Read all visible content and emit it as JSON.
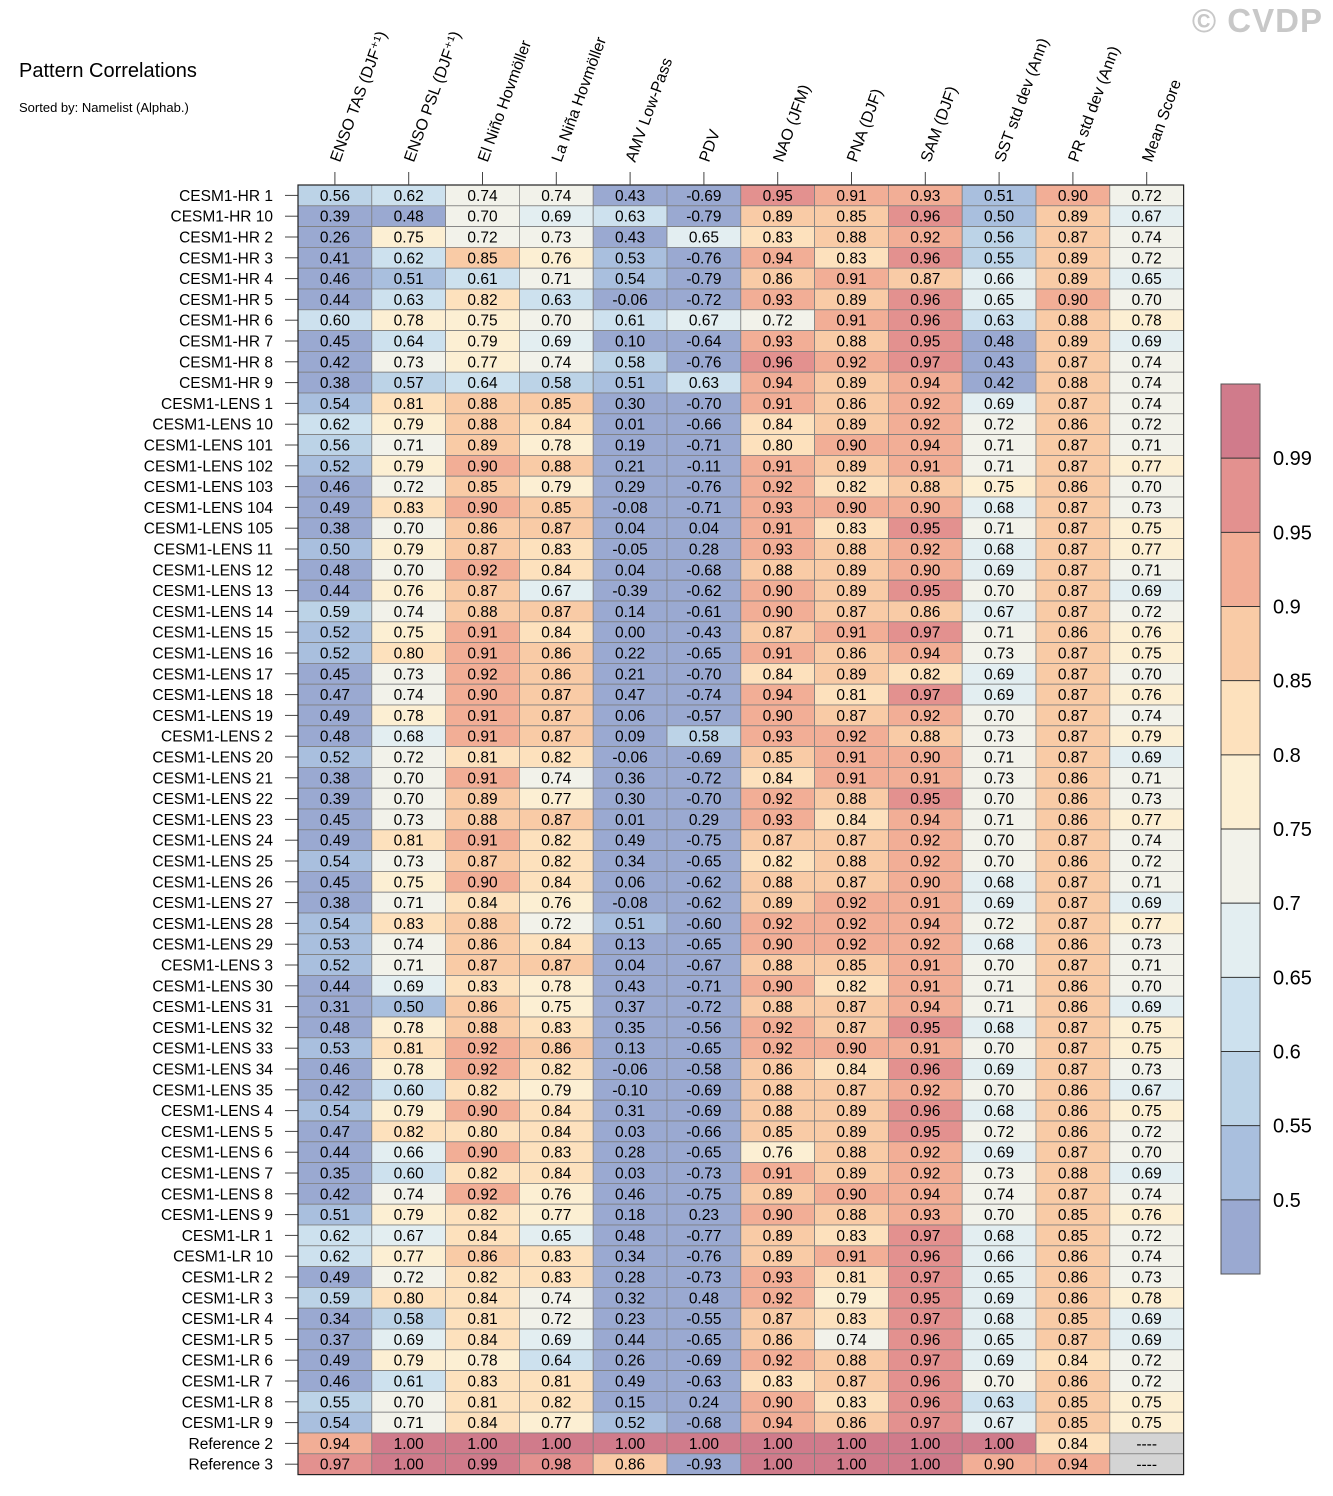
{
  "watermark": "© CVDP",
  "chart_data": {
    "type": "heatmap",
    "title": "Pattern Correlations",
    "subtitle": "Sorted by: Namelist (Alphab.)",
    "columns": [
      "ENSO TAS (DJF⁺¹)",
      "ENSO PSL (DJF⁺¹)",
      "El Niño Hovmöller",
      "La Niña Hovmöller",
      "AMV Low-Pass",
      "PDV",
      "NAO (JFM)",
      "PNA (DJF)",
      "SAM (DJF)",
      "SST std dev (Ann)",
      "PR std dev (Ann)",
      "Mean Score"
    ],
    "rows": [
      {
        "name": "CESM1-HR 1",
        "values": [
          "0.56",
          "0.62",
          "0.74",
          "0.74",
          "0.43",
          "-0.69",
          "0.95",
          "0.91",
          "0.93",
          "0.51",
          "0.90",
          "0.72"
        ]
      },
      {
        "name": "CESM1-HR 10",
        "values": [
          "0.39",
          "0.48",
          "0.70",
          "0.69",
          "0.63",
          "-0.79",
          "0.89",
          "0.85",
          "0.96",
          "0.50",
          "0.89",
          "0.67"
        ]
      },
      {
        "name": "CESM1-HR 2",
        "values": [
          "0.26",
          "0.75",
          "0.72",
          "0.73",
          "0.43",
          "0.65",
          "0.83",
          "0.88",
          "0.92",
          "0.56",
          "0.87",
          "0.74"
        ]
      },
      {
        "name": "CESM1-HR 3",
        "values": [
          "0.41",
          "0.62",
          "0.85",
          "0.76",
          "0.53",
          "-0.76",
          "0.94",
          "0.83",
          "0.96",
          "0.55",
          "0.89",
          "0.72"
        ]
      },
      {
        "name": "CESM1-HR 4",
        "values": [
          "0.46",
          "0.51",
          "0.61",
          "0.71",
          "0.54",
          "-0.79",
          "0.86",
          "0.91",
          "0.87",
          "0.66",
          "0.89",
          "0.65"
        ]
      },
      {
        "name": "CESM1-HR 5",
        "values": [
          "0.44",
          "0.63",
          "0.82",
          "0.63",
          "-0.06",
          "-0.72",
          "0.93",
          "0.89",
          "0.96",
          "0.65",
          "0.90",
          "0.70"
        ]
      },
      {
        "name": "CESM1-HR 6",
        "values": [
          "0.60",
          "0.78",
          "0.75",
          "0.70",
          "0.61",
          "0.67",
          "0.72",
          "0.91",
          "0.96",
          "0.63",
          "0.88",
          "0.78"
        ]
      },
      {
        "name": "CESM1-HR 7",
        "values": [
          "0.45",
          "0.64",
          "0.79",
          "0.69",
          "0.10",
          "-0.64",
          "0.93",
          "0.88",
          "0.95",
          "0.48",
          "0.89",
          "0.69"
        ]
      },
      {
        "name": "CESM1-HR 8",
        "values": [
          "0.42",
          "0.73",
          "0.77",
          "0.74",
          "0.58",
          "-0.76",
          "0.96",
          "0.92",
          "0.97",
          "0.43",
          "0.87",
          "0.74"
        ]
      },
      {
        "name": "CESM1-HR 9",
        "values": [
          "0.38",
          "0.57",
          "0.64",
          "0.58",
          "0.51",
          "0.63",
          "0.94",
          "0.89",
          "0.94",
          "0.42",
          "0.88",
          "0.74"
        ]
      },
      {
        "name": "CESM1-LENS 1",
        "values": [
          "0.54",
          "0.81",
          "0.88",
          "0.85",
          "0.30",
          "-0.70",
          "0.91",
          "0.86",
          "0.92",
          "0.69",
          "0.87",
          "0.74"
        ]
      },
      {
        "name": "CESM1-LENS 10",
        "values": [
          "0.62",
          "0.79",
          "0.88",
          "0.84",
          "0.01",
          "-0.66",
          "0.84",
          "0.89",
          "0.92",
          "0.72",
          "0.86",
          "0.72"
        ]
      },
      {
        "name": "CESM1-LENS 101",
        "values": [
          "0.56",
          "0.71",
          "0.89",
          "0.78",
          "0.19",
          "-0.71",
          "0.80",
          "0.90",
          "0.94",
          "0.71",
          "0.87",
          "0.71"
        ]
      },
      {
        "name": "CESM1-LENS 102",
        "values": [
          "0.52",
          "0.79",
          "0.90",
          "0.88",
          "0.21",
          "-0.11",
          "0.91",
          "0.89",
          "0.91",
          "0.71",
          "0.87",
          "0.77"
        ]
      },
      {
        "name": "CESM1-LENS 103",
        "values": [
          "0.46",
          "0.72",
          "0.85",
          "0.79",
          "0.29",
          "-0.76",
          "0.92",
          "0.82",
          "0.88",
          "0.75",
          "0.86",
          "0.70"
        ]
      },
      {
        "name": "CESM1-LENS 104",
        "values": [
          "0.49",
          "0.83",
          "0.90",
          "0.85",
          "-0.08",
          "-0.71",
          "0.93",
          "0.90",
          "0.90",
          "0.68",
          "0.87",
          "0.73"
        ]
      },
      {
        "name": "CESM1-LENS 105",
        "values": [
          "0.38",
          "0.70",
          "0.86",
          "0.87",
          "0.04",
          "0.04",
          "0.91",
          "0.83",
          "0.95",
          "0.71",
          "0.87",
          "0.75"
        ]
      },
      {
        "name": "CESM1-LENS 11",
        "values": [
          "0.50",
          "0.79",
          "0.87",
          "0.83",
          "-0.05",
          "0.28",
          "0.93",
          "0.88",
          "0.92",
          "0.68",
          "0.87",
          "0.77"
        ]
      },
      {
        "name": "CESM1-LENS 12",
        "values": [
          "0.48",
          "0.70",
          "0.92",
          "0.84",
          "0.04",
          "-0.68",
          "0.88",
          "0.89",
          "0.90",
          "0.69",
          "0.87",
          "0.71"
        ]
      },
      {
        "name": "CESM1-LENS 13",
        "values": [
          "0.44",
          "0.76",
          "0.87",
          "0.67",
          "-0.39",
          "-0.62",
          "0.90",
          "0.89",
          "0.95",
          "0.70",
          "0.87",
          "0.69"
        ]
      },
      {
        "name": "CESM1-LENS 14",
        "values": [
          "0.59",
          "0.74",
          "0.88",
          "0.87",
          "0.14",
          "-0.61",
          "0.90",
          "0.87",
          "0.86",
          "0.67",
          "0.87",
          "0.72"
        ]
      },
      {
        "name": "CESM1-LENS 15",
        "values": [
          "0.52",
          "0.75",
          "0.91",
          "0.84",
          "0.00",
          "-0.43",
          "0.87",
          "0.91",
          "0.97",
          "0.71",
          "0.86",
          "0.76"
        ]
      },
      {
        "name": "CESM1-LENS 16",
        "values": [
          "0.52",
          "0.80",
          "0.91",
          "0.86",
          "0.22",
          "-0.65",
          "0.91",
          "0.86",
          "0.94",
          "0.73",
          "0.87",
          "0.75"
        ]
      },
      {
        "name": "CESM1-LENS 17",
        "values": [
          "0.45",
          "0.73",
          "0.92",
          "0.86",
          "0.21",
          "-0.70",
          "0.84",
          "0.89",
          "0.82",
          "0.69",
          "0.87",
          "0.70"
        ]
      },
      {
        "name": "CESM1-LENS 18",
        "values": [
          "0.47",
          "0.74",
          "0.90",
          "0.87",
          "0.47",
          "-0.74",
          "0.94",
          "0.81",
          "0.97",
          "0.69",
          "0.87",
          "0.76"
        ]
      },
      {
        "name": "CESM1-LENS 19",
        "values": [
          "0.49",
          "0.78",
          "0.91",
          "0.87",
          "0.06",
          "-0.57",
          "0.90",
          "0.87",
          "0.92",
          "0.70",
          "0.87",
          "0.74"
        ]
      },
      {
        "name": "CESM1-LENS 2",
        "values": [
          "0.48",
          "0.68",
          "0.91",
          "0.87",
          "0.09",
          "0.58",
          "0.93",
          "0.92",
          "0.88",
          "0.73",
          "0.87",
          "0.79"
        ]
      },
      {
        "name": "CESM1-LENS 20",
        "values": [
          "0.52",
          "0.72",
          "0.81",
          "0.82",
          "-0.06",
          "-0.69",
          "0.85",
          "0.91",
          "0.90",
          "0.71",
          "0.87",
          "0.69"
        ]
      },
      {
        "name": "CESM1-LENS 21",
        "values": [
          "0.38",
          "0.70",
          "0.91",
          "0.74",
          "0.36",
          "-0.72",
          "0.84",
          "0.91",
          "0.91",
          "0.73",
          "0.86",
          "0.71"
        ]
      },
      {
        "name": "CESM1-LENS 22",
        "values": [
          "0.39",
          "0.70",
          "0.89",
          "0.77",
          "0.30",
          "-0.70",
          "0.92",
          "0.88",
          "0.95",
          "0.70",
          "0.86",
          "0.73"
        ]
      },
      {
        "name": "CESM1-LENS 23",
        "values": [
          "0.45",
          "0.73",
          "0.88",
          "0.87",
          "0.01",
          "0.29",
          "0.93",
          "0.84",
          "0.94",
          "0.71",
          "0.86",
          "0.77"
        ]
      },
      {
        "name": "CESM1-LENS 24",
        "values": [
          "0.49",
          "0.81",
          "0.91",
          "0.82",
          "0.49",
          "-0.75",
          "0.87",
          "0.87",
          "0.92",
          "0.70",
          "0.87",
          "0.74"
        ]
      },
      {
        "name": "CESM1-LENS 25",
        "values": [
          "0.54",
          "0.73",
          "0.87",
          "0.82",
          "0.34",
          "-0.65",
          "0.82",
          "0.88",
          "0.92",
          "0.70",
          "0.86",
          "0.72"
        ]
      },
      {
        "name": "CESM1-LENS 26",
        "values": [
          "0.45",
          "0.75",
          "0.90",
          "0.84",
          "0.06",
          "-0.62",
          "0.88",
          "0.87",
          "0.90",
          "0.68",
          "0.87",
          "0.71"
        ]
      },
      {
        "name": "CESM1-LENS 27",
        "values": [
          "0.38",
          "0.71",
          "0.84",
          "0.76",
          "-0.08",
          "-0.62",
          "0.89",
          "0.92",
          "0.91",
          "0.69",
          "0.87",
          "0.69"
        ]
      },
      {
        "name": "CESM1-LENS 28",
        "values": [
          "0.54",
          "0.83",
          "0.88",
          "0.72",
          "0.51",
          "-0.60",
          "0.92",
          "0.92",
          "0.94",
          "0.72",
          "0.87",
          "0.77"
        ]
      },
      {
        "name": "CESM1-LENS 29",
        "values": [
          "0.53",
          "0.74",
          "0.86",
          "0.84",
          "0.13",
          "-0.65",
          "0.90",
          "0.92",
          "0.92",
          "0.68",
          "0.86",
          "0.73"
        ]
      },
      {
        "name": "CESM1-LENS 3",
        "values": [
          "0.52",
          "0.71",
          "0.87",
          "0.87",
          "0.04",
          "-0.67",
          "0.88",
          "0.85",
          "0.91",
          "0.70",
          "0.87",
          "0.71"
        ]
      },
      {
        "name": "CESM1-LENS 30",
        "values": [
          "0.44",
          "0.69",
          "0.83",
          "0.78",
          "0.43",
          "-0.71",
          "0.90",
          "0.82",
          "0.91",
          "0.71",
          "0.86",
          "0.70"
        ]
      },
      {
        "name": "CESM1-LENS 31",
        "values": [
          "0.31",
          "0.50",
          "0.86",
          "0.75",
          "0.37",
          "-0.72",
          "0.88",
          "0.87",
          "0.94",
          "0.71",
          "0.86",
          "0.69"
        ]
      },
      {
        "name": "CESM1-LENS 32",
        "values": [
          "0.48",
          "0.78",
          "0.88",
          "0.83",
          "0.35",
          "-0.56",
          "0.92",
          "0.87",
          "0.95",
          "0.68",
          "0.87",
          "0.75"
        ]
      },
      {
        "name": "CESM1-LENS 33",
        "values": [
          "0.53",
          "0.81",
          "0.92",
          "0.86",
          "0.13",
          "-0.65",
          "0.92",
          "0.90",
          "0.91",
          "0.70",
          "0.87",
          "0.75"
        ]
      },
      {
        "name": "CESM1-LENS 34",
        "values": [
          "0.46",
          "0.78",
          "0.92",
          "0.82",
          "-0.06",
          "-0.58",
          "0.86",
          "0.84",
          "0.96",
          "0.69",
          "0.87",
          "0.73"
        ]
      },
      {
        "name": "CESM1-LENS 35",
        "values": [
          "0.42",
          "0.60",
          "0.82",
          "0.79",
          "-0.10",
          "-0.69",
          "0.88",
          "0.87",
          "0.92",
          "0.70",
          "0.86",
          "0.67"
        ]
      },
      {
        "name": "CESM1-LENS 4",
        "values": [
          "0.54",
          "0.79",
          "0.90",
          "0.84",
          "0.31",
          "-0.69",
          "0.88",
          "0.89",
          "0.96",
          "0.68",
          "0.86",
          "0.75"
        ]
      },
      {
        "name": "CESM1-LENS 5",
        "values": [
          "0.47",
          "0.82",
          "0.80",
          "0.84",
          "0.03",
          "-0.66",
          "0.85",
          "0.89",
          "0.95",
          "0.72",
          "0.86",
          "0.72"
        ]
      },
      {
        "name": "CESM1-LENS 6",
        "values": [
          "0.44",
          "0.66",
          "0.90",
          "0.83",
          "0.28",
          "-0.65",
          "0.76",
          "0.88",
          "0.92",
          "0.69",
          "0.87",
          "0.70"
        ]
      },
      {
        "name": "CESM1-LENS 7",
        "values": [
          "0.35",
          "0.60",
          "0.82",
          "0.84",
          "0.03",
          "-0.73",
          "0.91",
          "0.89",
          "0.92",
          "0.73",
          "0.88",
          "0.69"
        ]
      },
      {
        "name": "CESM1-LENS 8",
        "values": [
          "0.42",
          "0.74",
          "0.92",
          "0.76",
          "0.46",
          "-0.75",
          "0.89",
          "0.90",
          "0.94",
          "0.74",
          "0.87",
          "0.74"
        ]
      },
      {
        "name": "CESM1-LENS 9",
        "values": [
          "0.51",
          "0.79",
          "0.82",
          "0.77",
          "0.18",
          "0.23",
          "0.90",
          "0.88",
          "0.93",
          "0.70",
          "0.85",
          "0.76"
        ]
      },
      {
        "name": "CESM1-LR 1",
        "values": [
          "0.62",
          "0.67",
          "0.84",
          "0.65",
          "0.48",
          "-0.77",
          "0.89",
          "0.83",
          "0.97",
          "0.68",
          "0.85",
          "0.72"
        ]
      },
      {
        "name": "CESM1-LR 10",
        "values": [
          "0.62",
          "0.77",
          "0.86",
          "0.83",
          "0.34",
          "-0.76",
          "0.89",
          "0.91",
          "0.96",
          "0.66",
          "0.86",
          "0.74"
        ]
      },
      {
        "name": "CESM1-LR 2",
        "values": [
          "0.49",
          "0.72",
          "0.82",
          "0.83",
          "0.28",
          "-0.73",
          "0.93",
          "0.81",
          "0.97",
          "0.65",
          "0.86",
          "0.73"
        ]
      },
      {
        "name": "CESM1-LR 3",
        "values": [
          "0.59",
          "0.80",
          "0.84",
          "0.74",
          "0.32",
          "0.48",
          "0.92",
          "0.79",
          "0.95",
          "0.69",
          "0.86",
          "0.78"
        ]
      },
      {
        "name": "CESM1-LR 4",
        "values": [
          "0.34",
          "0.58",
          "0.81",
          "0.72",
          "0.23",
          "-0.55",
          "0.87",
          "0.83",
          "0.97",
          "0.68",
          "0.85",
          "0.69"
        ]
      },
      {
        "name": "CESM1-LR 5",
        "values": [
          "0.37",
          "0.69",
          "0.84",
          "0.69",
          "0.44",
          "-0.65",
          "0.86",
          "0.74",
          "0.96",
          "0.65",
          "0.87",
          "0.69"
        ]
      },
      {
        "name": "CESM1-LR 6",
        "values": [
          "0.49",
          "0.79",
          "0.78",
          "0.64",
          "0.26",
          "-0.69",
          "0.92",
          "0.88",
          "0.97",
          "0.69",
          "0.84",
          "0.72"
        ]
      },
      {
        "name": "CESM1-LR 7",
        "values": [
          "0.46",
          "0.61",
          "0.83",
          "0.81",
          "0.49",
          "-0.63",
          "0.83",
          "0.87",
          "0.96",
          "0.70",
          "0.86",
          "0.72"
        ]
      },
      {
        "name": "CESM1-LR 8",
        "values": [
          "0.55",
          "0.70",
          "0.81",
          "0.82",
          "0.15",
          "0.24",
          "0.90",
          "0.83",
          "0.96",
          "0.63",
          "0.85",
          "0.75"
        ]
      },
      {
        "name": "CESM1-LR 9",
        "values": [
          "0.54",
          "0.71",
          "0.84",
          "0.77",
          "0.52",
          "-0.68",
          "0.94",
          "0.86",
          "0.97",
          "0.67",
          "0.85",
          "0.75"
        ]
      },
      {
        "name": "Reference 2",
        "values": [
          "0.94",
          "1.00",
          "1.00",
          "1.00",
          "1.00",
          "1.00",
          "1.00",
          "1.00",
          "1.00",
          "1.00",
          "0.84",
          "----"
        ]
      },
      {
        "name": "Reference 3",
        "values": [
          "0.97",
          "1.00",
          "0.99",
          "0.98",
          "0.86",
          "-0.93",
          "1.00",
          "1.00",
          "1.00",
          "0.90",
          "0.94",
          "----"
        ]
      }
    ],
    "colorbar": {
      "levels": [
        0.5,
        0.55,
        0.6,
        0.65,
        0.7,
        0.75,
        0.8,
        0.85,
        0.9,
        0.95,
        0.99
      ],
      "labels": [
        "0.5",
        "0.55",
        "0.6",
        "0.65",
        "0.7",
        "0.75",
        "0.8",
        "0.85",
        "0.9",
        "0.95",
        "0.99"
      ],
      "colors": [
        "#9aa9d1",
        "#a9bfde",
        "#bcd3e7",
        "#cde1ee",
        "#e3eef1",
        "#f2f2ea",
        "#fcefd3",
        "#fde1bd",
        "#f9cba6",
        "#f2ae96",
        "#e3918f",
        "#d07b8b"
      ],
      "missing_color": "#d4d4d4"
    }
  }
}
